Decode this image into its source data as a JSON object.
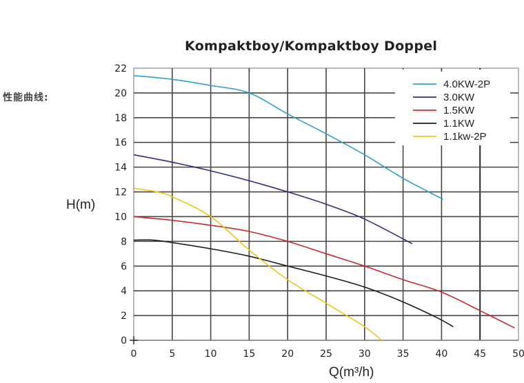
{
  "page": {
    "section_label": "性能曲线:",
    "title": "Kompaktboy/Kompaktboy Doppel",
    "ylabel": "H(m)",
    "xlabel": "Q(m³/h)"
  },
  "chart_data": {
    "type": "line",
    "title": "Kompaktboy/Kompaktboy Doppel",
    "xlabel": "Q(m³/h)",
    "ylabel": "H(m)",
    "xlim": [
      0,
      50
    ],
    "ylim": [
      0,
      22
    ],
    "xticks": [
      0,
      5,
      10,
      15,
      20,
      25,
      30,
      35,
      40,
      45,
      50
    ],
    "yticks": [
      0,
      2,
      4,
      6,
      8,
      10,
      12,
      14,
      16,
      18,
      20,
      22
    ],
    "grid": true,
    "legend_position": "upper right",
    "series": [
      {
        "name": "4.0KW-2P",
        "color": "#2a9fd0",
        "x": [
          0,
          5,
          10,
          15,
          20,
          25,
          30,
          35,
          40.2
        ],
        "y": [
          21.4,
          21.1,
          20.6,
          20.0,
          18.3,
          16.7,
          15.0,
          13.1,
          11.4
        ]
      },
      {
        "name": "3.0KW",
        "color": "#2b2f7e",
        "x": [
          0,
          5,
          10,
          15,
          20,
          25,
          30,
          36.2
        ],
        "y": [
          15.0,
          14.4,
          13.7,
          12.9,
          12.0,
          11.0,
          9.8,
          7.8
        ]
      },
      {
        "name": "1.5KW",
        "color": "#c8282e",
        "x": [
          0,
          5,
          10,
          15,
          20,
          25,
          30,
          35,
          40,
          45,
          49.5
        ],
        "y": [
          10.0,
          9.7,
          9.3,
          8.8,
          8.0,
          7.0,
          6.0,
          4.9,
          3.9,
          2.4,
          1.0
        ]
      },
      {
        "name": "1.1KW",
        "color": "#1a1a1a",
        "x": [
          0,
          2.5,
          5,
          10,
          15,
          20,
          25,
          30,
          35,
          39.5,
          41.5
        ],
        "y": [
          8.1,
          8.1,
          7.9,
          7.4,
          6.8,
          6.0,
          5.2,
          4.3,
          3.1,
          1.8,
          1.1
        ]
      },
      {
        "name": "1.1kw-2P",
        "color": "#f0c419",
        "x": [
          0,
          3,
          5,
          10,
          15,
          20,
          25,
          30,
          32.2
        ],
        "y": [
          12.3,
          12.0,
          11.6,
          10.0,
          7.3,
          4.9,
          3.0,
          1.1,
          0
        ]
      }
    ]
  }
}
